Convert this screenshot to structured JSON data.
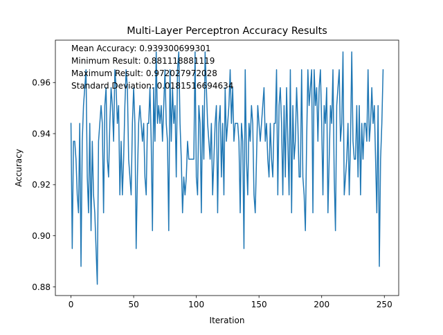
{
  "chart_data": {
    "type": "line",
    "title": "Multi-Layer Perceptron Accuracy Results",
    "xlabel": "Iteration",
    "ylabel": "Accuracy",
    "xlim": [
      -12.45,
      261.45
    ],
    "ylim": [
      0.8766,
      0.9766
    ],
    "x_ticks": [
      0,
      50,
      100,
      150,
      200,
      250
    ],
    "y_ticks": [
      0.88,
      0.9,
      0.92,
      0.94,
      0.96
    ],
    "y_tick_labels": [
      "0.88",
      "0.90",
      "0.92",
      "0.94",
      "0.96"
    ],
    "grid": false,
    "legend": "none",
    "annotations": [
      "Mean Accuracy: 0.939300699301",
      "Minimum Result: 0.881118881119",
      "Maximum Result: 0.972027972028",
      "Standard Deviation: 0.0181516694634"
    ],
    "colors": {
      "line": "#1f77b4",
      "axes": "#000000",
      "background": "#ffffff"
    },
    "series": [
      {
        "x_start": 0,
        "x_step": 1,
        "values": [
          0.944,
          0.895,
          0.937,
          0.937,
          0.93,
          0.916,
          0.909,
          0.944,
          0.888,
          0.937,
          0.951,
          0.958,
          0.965,
          0.923,
          0.909,
          0.944,
          0.902,
          0.937,
          0.916,
          0.909,
          0.895,
          0.881,
          0.937,
          0.944,
          0.951,
          0.944,
          0.909,
          0.951,
          0.958,
          0.93,
          0.923,
          0.944,
          0.958,
          0.951,
          0.937,
          0.965,
          0.958,
          0.944,
          0.951,
          0.916,
          0.937,
          0.916,
          0.93,
          0.951,
          0.965,
          0.958,
          0.93,
          0.923,
          0.916,
          0.944,
          0.958,
          0.944,
          0.895,
          0.923,
          0.944,
          0.951,
          0.944,
          0.937,
          0.944,
          0.923,
          0.916,
          0.944,
          0.944,
          0.958,
          0.937,
          0.902,
          0.958,
          0.937,
          0.972,
          0.944,
          0.951,
          0.944,
          0.951,
          0.937,
          0.951,
          0.965,
          0.944,
          0.937,
          0.902,
          0.965,
          0.937,
          0.958,
          0.944,
          0.951,
          0.923,
          0.965,
          0.972,
          0.944,
          0.93,
          0.909,
          0.923,
          0.916,
          0.923,
          0.937,
          0.93,
          0.93,
          0.93,
          0.93,
          0.93,
          0.972,
          0.923,
          0.916,
          0.951,
          0.944,
          0.909,
          0.951,
          0.93,
          0.972,
          0.958,
          0.944,
          0.937,
          0.93,
          0.944,
          0.916,
          0.93,
          0.944,
          0.951,
          0.909,
          0.944,
          0.951,
          0.923,
          0.944,
          0.916,
          0.958,
          0.937,
          0.944,
          0.951,
          0.965,
          0.944,
          0.958,
          0.937,
          0.944,
          0.944,
          0.944,
          0.937,
          0.909,
          0.944,
          0.937,
          0.895,
          0.965,
          0.93,
          0.916,
          0.944,
          0.937,
          0.951,
          0.944,
          0.916,
          0.909,
          0.93,
          0.951,
          0.944,
          0.937,
          0.944,
          0.951,
          0.958,
          0.937,
          0.944,
          0.93,
          0.923,
          0.944,
          0.93,
          0.923,
          0.944,
          0.944,
          0.965,
          0.916,
          0.951,
          0.958,
          0.944,
          0.916,
          0.951,
          0.923,
          0.958,
          0.937,
          0.916,
          0.965,
          0.909,
          0.951,
          0.93,
          0.937,
          0.958,
          0.944,
          0.923,
          0.923,
          0.965,
          0.923,
          0.916,
          0.902,
          0.937,
          0.965,
          0.951,
          0.958,
          0.965,
          0.909,
          0.965,
          0.951,
          0.958,
          0.937,
          0.958,
          0.965,
          0.944,
          0.916,
          0.951,
          0.944,
          0.958,
          0.909,
          0.93,
          0.951,
          0.944,
          0.965,
          0.923,
          0.902,
          0.951,
          0.958,
          0.965,
          0.937,
          0.944,
          0.972,
          0.916,
          0.923,
          0.93,
          0.944,
          0.916,
          0.937,
          0.972,
          0.937,
          0.93,
          0.93,
          0.951,
          0.923,
          0.951,
          0.916,
          0.944,
          0.93,
          0.944,
          0.944,
          0.937,
          0.965,
          0.937,
          0.944,
          0.958,
          0.944,
          0.951,
          0.93,
          0.909,
          0.951,
          0.888,
          0.93,
          0.944,
          0.965
        ]
      }
    ]
  }
}
